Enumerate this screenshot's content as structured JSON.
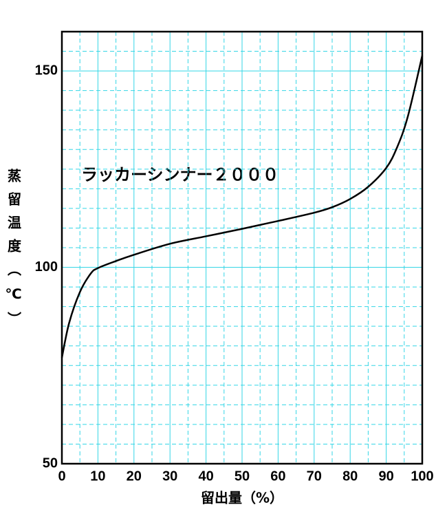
{
  "chart_data": {
    "type": "line",
    "annotation": "ラッカーシンナー２０００",
    "x_label": "留出量（%）",
    "y_label": "蒸留温度（℃）",
    "x": [
      0,
      2,
      5,
      8,
      10,
      15,
      20,
      30,
      40,
      50,
      60,
      70,
      75,
      80,
      85,
      90,
      93,
      96,
      100
    ],
    "series": [
      {
        "color": "#000000",
        "values": [
          77.0,
          85.8,
          93.7,
          98.4,
          99.8,
          101.6,
          103.2,
          106.0,
          107.9,
          109.8,
          111.8,
          113.9,
          115.3,
          117.4,
          120.5,
          125.3,
          130.5,
          138.4,
          153.9
        ]
      }
    ],
    "xlim": [
      0,
      100
    ],
    "xticks": [
      0,
      10,
      20,
      30,
      40,
      50,
      60,
      70,
      80,
      90,
      100
    ],
    "ylim": [
      50,
      160
    ],
    "yticks": [
      50,
      100,
      150
    ],
    "grid": true,
    "grid_color": "#33d6e6"
  }
}
